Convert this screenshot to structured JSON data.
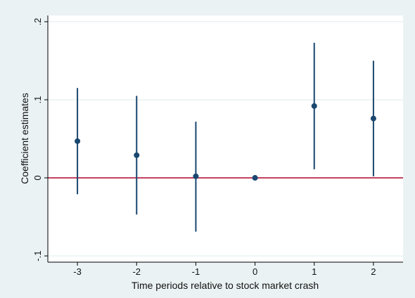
{
  "chart_data": {
    "type": "scatter",
    "subtype": "coefficient-plot-with-confidence-intervals",
    "title": "",
    "xlabel": "Time periods relative to stock market crash",
    "ylabel": "Coefficient estimates",
    "x": [
      -3,
      -2,
      -1,
      0,
      1,
      2
    ],
    "x_tick_labels": [
      "-3",
      "-2",
      "-1",
      "0",
      "1",
      "2"
    ],
    "y_ticks": [
      -0.1,
      0,
      0.1,
      0.2
    ],
    "y_tick_labels": [
      "-.1",
      "0",
      ".1",
      ".2"
    ],
    "xlim": [
      -3.5,
      2.5
    ],
    "ylim": [
      -0.108,
      0.208
    ],
    "series": [
      {
        "estimates": [
          0.047,
          0.029,
          0.002,
          0.0,
          0.092,
          0.076
        ],
        "ci_lower": [
          -0.021,
          -0.047,
          -0.069,
          0.0,
          0.011,
          0.002
        ],
        "ci_upper": [
          0.115,
          0.105,
          0.072,
          0.0,
          0.173,
          0.15
        ]
      }
    ],
    "reference_line": {
      "y": 0,
      "color": "#b5173a"
    },
    "grid": "horizontal",
    "legend": "none",
    "colors": {
      "outer_background": "#eaf2f3",
      "plot_background": "#ffffff",
      "marker": "#1a476f",
      "ci_line": "#1a476f",
      "gridline": "#eaf2f3",
      "axis": "#000000"
    }
  }
}
